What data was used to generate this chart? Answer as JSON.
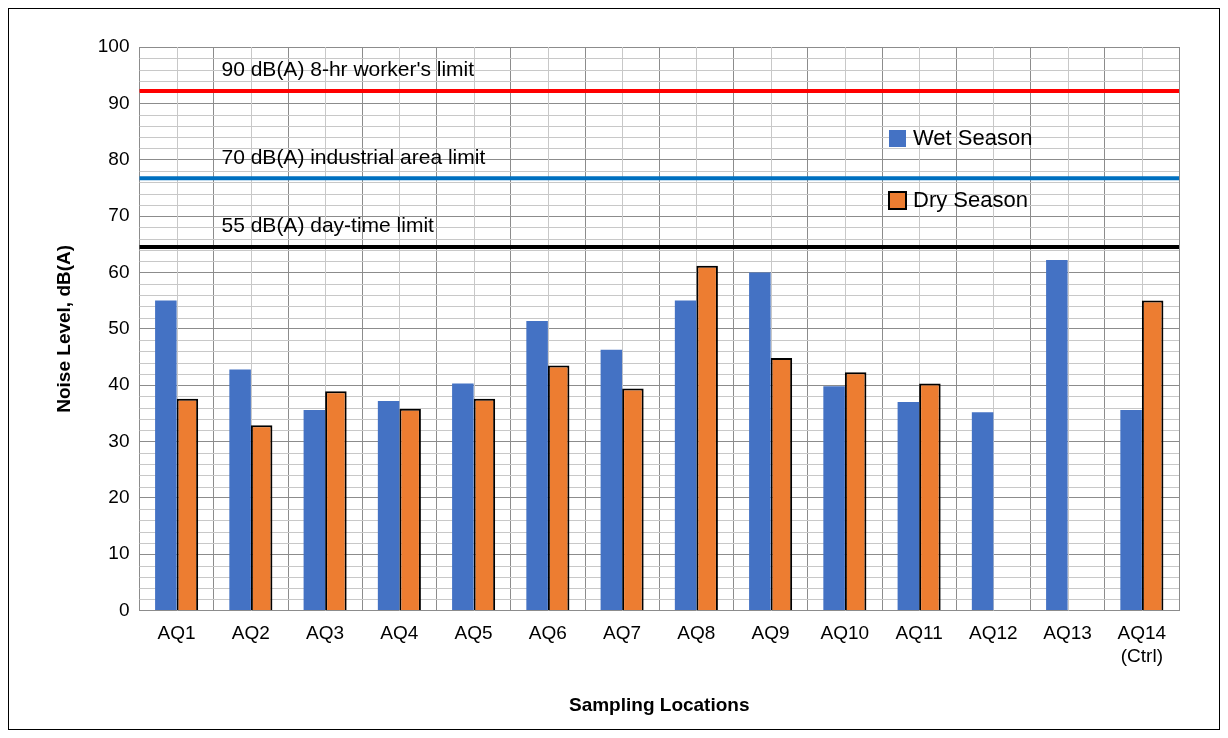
{
  "chart_data": {
    "type": "bar",
    "xlabel": "Sampling Locations",
    "ylabel": "Noise Level, dB(A)",
    "categories": [
      "AQ1",
      "AQ2",
      "AQ3",
      "AQ4",
      "AQ5",
      "AQ6",
      "AQ7",
      "AQ8",
      "AQ9",
      "AQ10",
      "AQ11",
      "AQ12",
      "AQ13",
      "AQ14 (Ctrl)"
    ],
    "series": [
      {
        "name": "Wet Season",
        "color": "#4472c4",
        "values": [
          55,
          42.8,
          35.6,
          37.2,
          40.3,
          51.4,
          46.3,
          55,
          60,
          39.8,
          37,
          35.2,
          62.2,
          35.6
        ]
      },
      {
        "name": "Dry Season",
        "color": "#ed7d31",
        "values": [
          37.6,
          32.9,
          38.9,
          35.8,
          37.6,
          43.5,
          39.4,
          61.2,
          44.8,
          42.3,
          40.3,
          null,
          null,
          55
        ]
      }
    ],
    "ylim": [
      0,
      100
    ],
    "yticks": [
      0,
      10,
      20,
      30,
      40,
      50,
      60,
      70,
      80,
      90,
      100
    ],
    "ref_lines": [
      {
        "axis": "y",
        "value": 92.2,
        "label": "90 dB(A) 8-hr worker's limit",
        "color": "#ff0000"
      },
      {
        "axis": "y",
        "value": 76.7,
        "label": "70 dB(A) industrial area limit",
        "color": "#0070c0"
      },
      {
        "axis": "y",
        "value": 64.5,
        "label": "55 dB(A) day-time limit",
        "color": "#000000"
      }
    ],
    "grid": true,
    "legend": "top right"
  }
}
